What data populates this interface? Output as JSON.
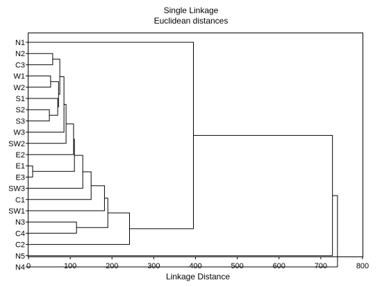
{
  "chart_data": {
    "type": "dendrogram",
    "title": "Single Linkage",
    "subtitle": "Euclidean distances",
    "xlabel": "Linkage Distance",
    "xlim": [
      0,
      800
    ],
    "xticks": [
      0,
      100,
      200,
      300,
      400,
      500,
      600,
      700,
      800
    ],
    "leaves": [
      "N1",
      "N2",
      "C3",
      "W1",
      "W2",
      "S1",
      "S2",
      "S3",
      "W3",
      "SW2",
      "E2",
      "E1",
      "E3",
      "SW3",
      "C1",
      "SW1",
      "N3",
      "C4",
      "C2",
      "N5",
      "N4"
    ],
    "merges": [
      {
        "id": "m1",
        "a": "E1",
        "b": "E3",
        "height": 10
      },
      {
        "id": "m2",
        "a": "S2",
        "b": "S3",
        "height": 50
      },
      {
        "id": "m3",
        "a": "W1",
        "b": "W2",
        "height": 53
      },
      {
        "id": "m4",
        "a": "N2",
        "b": "C3",
        "height": 58
      },
      {
        "id": "m5",
        "a": "S1",
        "b": "m2",
        "height": 70
      },
      {
        "id": "m6",
        "a": "m3",
        "b": "m5",
        "height": 72
      },
      {
        "id": "m7",
        "a": "m4",
        "b": "m6",
        "height": 75
      },
      {
        "id": "m8",
        "a": "m7",
        "b": "W3",
        "height": 85
      },
      {
        "id": "m9",
        "a": "m8",
        "b": "SW2",
        "height": 90
      },
      {
        "id": "m10",
        "a": "m9",
        "b": "E2",
        "height": 108
      },
      {
        "id": "m11",
        "a": "m10",
        "b": "m1",
        "height": 110
      },
      {
        "id": "m12",
        "a": "N3",
        "b": "C4",
        "height": 115
      },
      {
        "id": "m13",
        "a": "m11",
        "b": "SW3",
        "height": 130
      },
      {
        "id": "m14",
        "a": "m13",
        "b": "C1",
        "height": 150
      },
      {
        "id": "m15",
        "a": "m14",
        "b": "SW1",
        "height": 182
      },
      {
        "id": "m16",
        "a": "m15",
        "b": "m12",
        "height": 190
      },
      {
        "id": "m17",
        "a": "m16",
        "b": "C2",
        "height": 242
      },
      {
        "id": "m18",
        "a": "N1",
        "b": "m17",
        "height": 395
      },
      {
        "id": "m19",
        "a": "m18",
        "b": "N5",
        "height": 728
      },
      {
        "id": "m20",
        "a": "m19",
        "b": "N4",
        "height": 740
      }
    ]
  }
}
